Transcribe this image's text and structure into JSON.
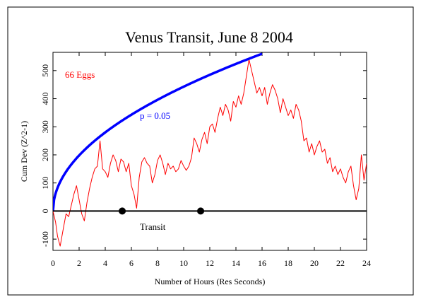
{
  "chart_data": {
    "type": "line",
    "title": "Venus Transit, June 8 2004",
    "xlabel": "Number of Hours (Res Seconds)",
    "ylabel": "Cum Dev (Z^2-1)",
    "xlim": [
      0,
      24
    ],
    "ylim": [
      -140,
      565
    ],
    "x_ticks": [
      0,
      2,
      4,
      6,
      8,
      10,
      12,
      14,
      16,
      18,
      20,
      22,
      24
    ],
    "y_ticks": [
      -100,
      0,
      100,
      200,
      300,
      400,
      500
    ],
    "annotations": {
      "eggs": "66 Eggs",
      "probability": "p = 0.05",
      "event": "Transit"
    },
    "colors": {
      "cumdev": "#ff0000",
      "envelope": "#0000ff",
      "baseline": "#000000",
      "eggs_text": "#ff0000",
      "prob_text": "#0000ff"
    },
    "envelope": {
      "name": "p = 0.05",
      "coef": 140,
      "exponent": 0.5,
      "x_end": 16
    },
    "transit_markers": [
      5.3,
      11.3
    ],
    "series": [
      {
        "x": [
          0,
          0.2,
          0.35,
          0.55,
          0.8,
          1.0,
          1.2,
          1.4,
          1.6,
          1.8,
          2.0,
          2.2,
          2.4,
          2.6,
          2.8,
          3.0,
          3.2,
          3.4,
          3.6,
          3.8,
          4.0,
          4.2,
          4.4,
          4.6,
          4.8,
          5.0,
          5.2,
          5.4,
          5.6,
          5.8,
          6.0,
          6.2,
          6.4,
          6.6,
          6.8,
          7.0,
          7.2,
          7.4,
          7.6,
          7.8,
          8.0,
          8.2,
          8.4,
          8.6,
          8.8,
          9.0,
          9.2,
          9.4,
          9.6,
          9.8,
          10.0,
          10.2,
          10.4,
          10.6,
          10.8,
          11.0,
          11.2,
          11.4,
          11.6,
          11.8,
          12.0,
          12.2,
          12.4,
          12.6,
          12.8,
          13.0,
          13.2,
          13.4,
          13.6,
          13.8,
          14.0,
          14.2,
          14.4,
          14.6,
          14.8,
          15.0,
          15.2,
          15.4,
          15.6,
          15.8,
          16.0,
          16.2,
          16.4,
          16.6,
          16.8,
          17.0,
          17.2,
          17.4,
          17.6,
          17.8,
          18.0,
          18.2,
          18.4,
          18.6,
          18.8,
          19.0,
          19.2,
          19.4,
          19.6,
          19.8,
          20.0,
          20.2,
          20.4,
          20.6,
          20.8,
          21.0,
          21.2,
          21.4,
          21.6,
          21.8,
          22.0,
          22.2,
          22.4,
          22.6,
          22.8,
          23.0,
          23.2,
          23.4,
          23.6,
          23.8,
          24.0
        ],
        "y": [
          0,
          -40,
          -90,
          -125,
          -60,
          -10,
          -20,
          20,
          60,
          90,
          40,
          -10,
          -35,
          30,
          80,
          120,
          150,
          160,
          250,
          150,
          140,
          120,
          170,
          200,
          180,
          140,
          185,
          175,
          140,
          170,
          90,
          60,
          10,
          120,
          175,
          190,
          170,
          160,
          100,
          130,
          180,
          200,
          170,
          130,
          170,
          150,
          160,
          140,
          150,
          180,
          160,
          145,
          160,
          190,
          260,
          240,
          210,
          255,
          280,
          240,
          300,
          310,
          280,
          330,
          370,
          340,
          380,
          360,
          320,
          390,
          370,
          410,
          380,
          420,
          480,
          540,
          500,
          460,
          420,
          440,
          410,
          440,
          380,
          420,
          450,
          430,
          400,
          350,
          400,
          370,
          340,
          360,
          330,
          380,
          360,
          320,
          250,
          260,
          210,
          240,
          200,
          230,
          250,
          210,
          220,
          170,
          190,
          140,
          160,
          130,
          150,
          120,
          100,
          140,
          160,
          90,
          40,
          80,
          200,
          110,
          170
        ]
      }
    ]
  }
}
